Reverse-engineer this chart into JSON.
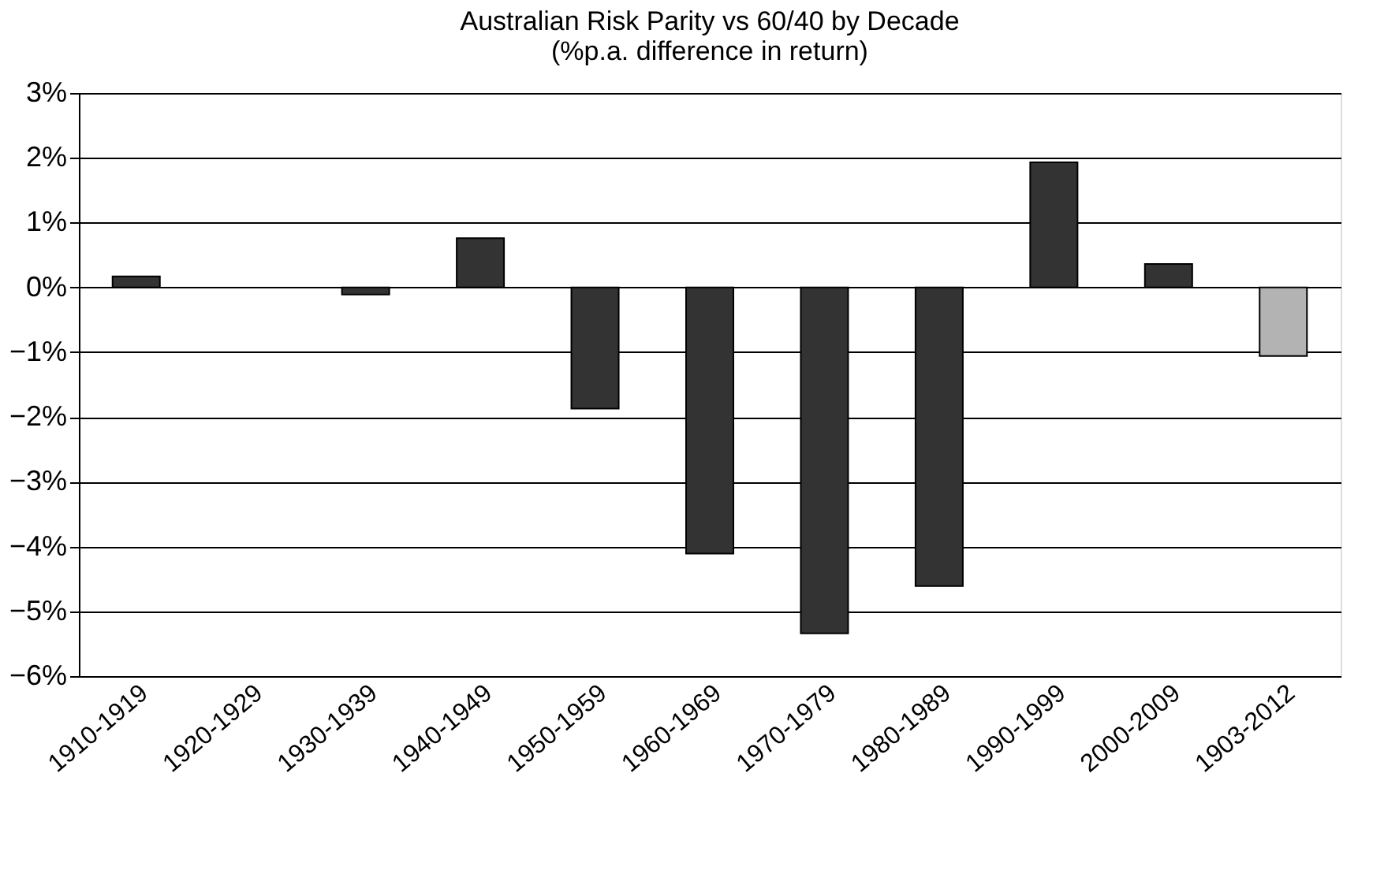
{
  "chart_data": {
    "type": "bar",
    "title": "Australian Risk Parity vs 60/40 by Decade",
    "subtitle": "(%p.a. difference in return)",
    "categories": [
      "1910-1919",
      "1920-1929",
      "1930-1939",
      "1940-1949",
      "1950-1959",
      "1960-1969",
      "1970-1979",
      "1980-1989",
      "1990-1999",
      "2000-2009",
      "1903-2012"
    ],
    "values": [
      0.17,
      null,
      -0.11,
      0.76,
      -1.87,
      -4.11,
      -5.34,
      -4.61,
      1.93,
      0.36,
      -1.06
    ],
    "colors": [
      "#333333",
      "#333333",
      "#333333",
      "#333333",
      "#333333",
      "#333333",
      "#333333",
      "#333333",
      "#333333",
      "#333333",
      "#b3b3b3"
    ],
    "ylim": [
      -6,
      3
    ],
    "yticks": [
      {
        "value": -6,
        "label": "−6%"
      },
      {
        "value": -5,
        "label": "−5%"
      },
      {
        "value": -4,
        "label": "−4%"
      },
      {
        "value": -3,
        "label": "−3%"
      },
      {
        "value": -2,
        "label": "−2%"
      },
      {
        "value": -1,
        "label": "−1%"
      },
      {
        "value": 0,
        "label": "0%"
      },
      {
        "value": 1,
        "label": "1%"
      },
      {
        "value": 2,
        "label": "2%"
      },
      {
        "value": 3,
        "label": "3%"
      }
    ],
    "grid": "y",
    "legend": false
  }
}
